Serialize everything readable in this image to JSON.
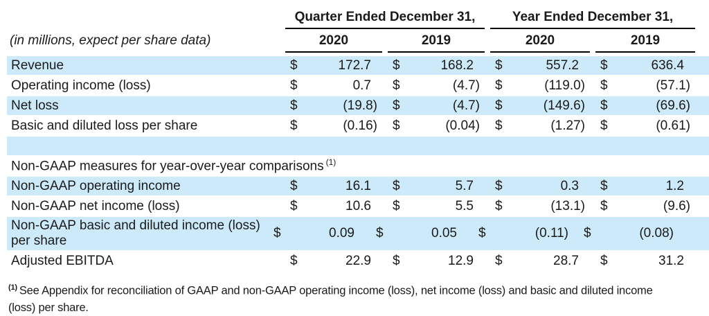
{
  "table": {
    "units_note": "(in millions, expect per share data)",
    "currency": "$",
    "col_groups": [
      {
        "label": "Quarter Ended December 31,"
      },
      {
        "label": "Year Ended December 31,"
      }
    ],
    "year_headers": [
      "2020",
      "2019",
      "2020",
      "2019"
    ],
    "rows": [
      {
        "label": "Revenue",
        "values": [
          "172.7",
          "168.2",
          "557.2",
          "636.4"
        ]
      },
      {
        "label": "Operating income (loss)",
        "values": [
          "0.7",
          "(4.7)",
          "(119.0)",
          "(57.1)"
        ]
      },
      {
        "label": "Net loss",
        "values": [
          "(19.8)",
          "(4.7)",
          "(149.6)",
          "(69.6)"
        ]
      },
      {
        "label": "Basic and diluted loss per share",
        "values": [
          "(0.16)",
          "(0.04)",
          "(1.27)",
          "(0.61)"
        ]
      },
      {
        "label": "",
        "values": [
          "",
          "",
          "",
          ""
        ]
      },
      {
        "label": "Non-GAAP measures for year-over-year comparisons",
        "sup": "(1)",
        "values": [
          "",
          "",
          "",
          ""
        ]
      },
      {
        "label": "Non-GAAP operating income",
        "values": [
          "16.1",
          "5.7",
          "0.3",
          "1.2"
        ]
      },
      {
        "label": "Non-GAAP net income (loss)",
        "values": [
          "10.6",
          "5.5",
          "(13.1)",
          "(9.6)"
        ]
      },
      {
        "label": "Non-GAAP basic and diluted income (loss) per share",
        "values": [
          "0.09",
          "0.05",
          "(0.11)",
          "(0.08)"
        ]
      },
      {
        "label": "Adjusted EBITDA",
        "values": [
          "22.9",
          "12.9",
          "28.7",
          "31.2"
        ]
      }
    ],
    "footnote": {
      "marker": "(1)",
      "text": "See Appendix for reconciliation of GAAP and non-GAAP operating income (loss), net income (loss) and basic and diluted income (loss) per share."
    }
  }
}
